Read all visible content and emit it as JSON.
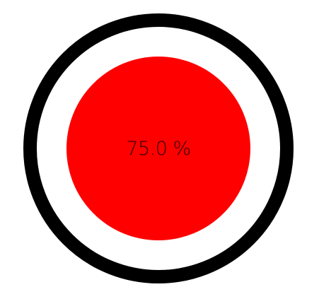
{
  "gauge": {
    "value_text": "75.0 %",
    "ring_color": "#000000",
    "fill_color": "#ff0000",
    "background_color": "#ffffff"
  }
}
